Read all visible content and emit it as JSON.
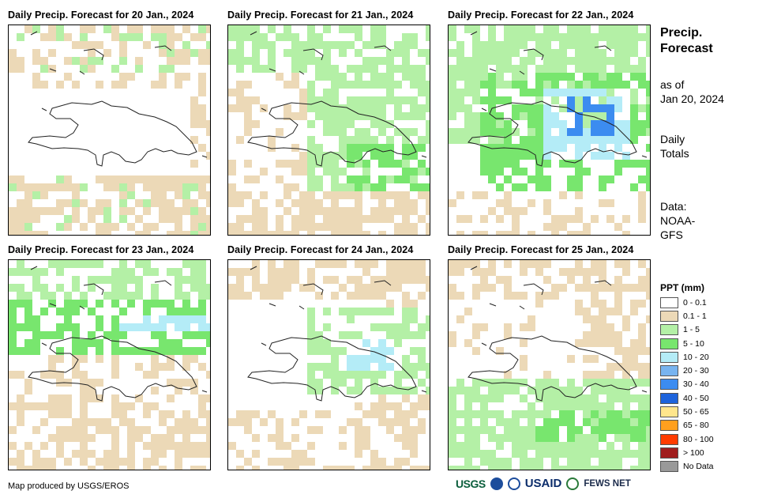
{
  "panels": [
    {
      "title": "Daily Precip. Forecast for 20 Jan., 2024",
      "pattern": "dry"
    },
    {
      "title": "Daily Precip. Forecast for 21 Jan., 2024",
      "pattern": "light-east"
    },
    {
      "title": "Daily Precip. Forecast for 22 Jan., 2024",
      "pattern": "moderate-central"
    },
    {
      "title": "Daily Precip. Forecast for 23 Jan., 2024",
      "pattern": "north-band"
    },
    {
      "title": "Daily Precip. Forecast for 24 Jan., 2024",
      "pattern": "northeast"
    },
    {
      "title": "Daily Precip. Forecast for 25 Jan., 2024",
      "pattern": "south-band"
    }
  ],
  "side": {
    "title_line1": "Precip.",
    "title_line2": "Forecast",
    "asof_line1": "as of",
    "asof_line2": "Jan 20, 2024",
    "totals_line1": "Daily",
    "totals_line2": "Totals",
    "data_line1": "Data:",
    "data_line2": "NOAA-",
    "data_line3": "GFS"
  },
  "legend": {
    "title": "PPT (mm)",
    "items": [
      {
        "label": "0 - 0.1",
        "color": "#ffffff"
      },
      {
        "label": "0.1 - 1",
        "color": "#ecd9b7"
      },
      {
        "label": "1 - 5",
        "color": "#b4f0a6"
      },
      {
        "label": "5 - 10",
        "color": "#78e66e"
      },
      {
        "label": "10 - 20",
        "color": "#b4ecf7"
      },
      {
        "label": "20 - 30",
        "color": "#78b4f0"
      },
      {
        "label": "30 - 40",
        "color": "#3c8cf0"
      },
      {
        "label": "40 - 50",
        "color": "#1e64dc"
      },
      {
        "label": "50 - 65",
        "color": "#ffe68c"
      },
      {
        "label": "65 - 80",
        "color": "#ffa01e"
      },
      {
        "label": "80 - 100",
        "color": "#ff3c00"
      },
      {
        "label": "> 100",
        "color": "#a01e1e"
      },
      {
        "label": "No Data",
        "color": "#999999"
      }
    ]
  },
  "footer": {
    "credit": "Map produced by USGS/EROS",
    "logo_usgs": "USGS",
    "logo_usaid": "USAID",
    "logo_fews": "FEWS NET"
  }
}
